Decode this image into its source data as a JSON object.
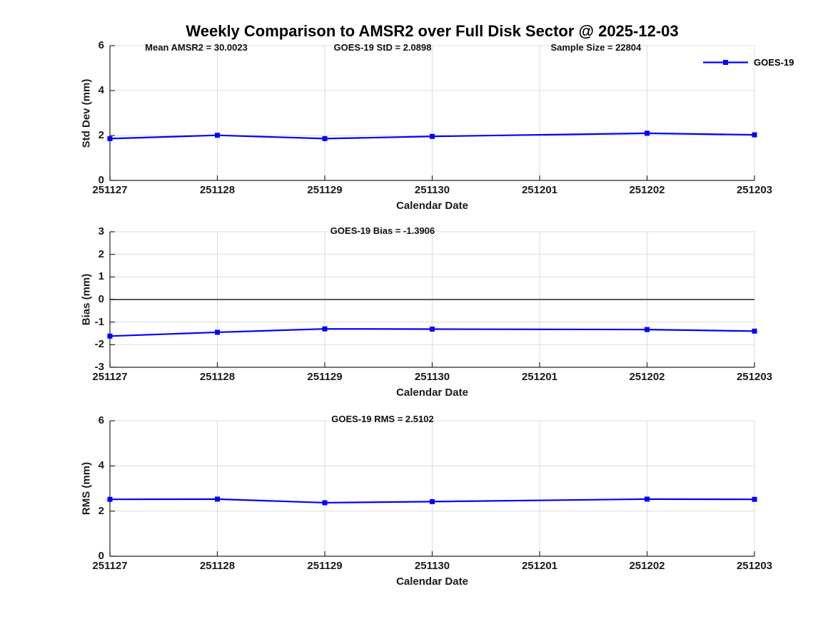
{
  "page": {
    "title": "Weekly Comparison to AMSR2 over Full Disk Sector @ 2025-12-03"
  },
  "legend": {
    "label": "GOES-19",
    "position": "top-right-outside"
  },
  "colors": {
    "line": "#0000ff",
    "grid": "#dcdcdc",
    "axis": "#262626",
    "tick_text": "#1a1a1a",
    "zero_line": "#404040",
    "background": "#ffffff"
  },
  "x_axis": {
    "label": "Calendar Date",
    "categories": [
      "251127",
      "251128",
      "251129",
      "251130",
      "251201",
      "251202",
      "251203"
    ]
  },
  "chart_data": [
    {
      "name": "std-dev",
      "type": "line",
      "title_annotations": [
        "Mean AMSR2 = 30.0023",
        "GOES-19 StD = 2.0898",
        "Sample Size = 22804"
      ],
      "ylabel": "Std Dev (mm)",
      "xlabel": "Calendar Date",
      "ylim": [
        0,
        6
      ],
      "yticks": [
        0,
        2,
        4,
        6
      ],
      "grid": true,
      "zero_line": false,
      "series": [
        {
          "name": "GOES-19",
          "x": [
            "251127",
            "251128",
            "251129",
            "251130",
            "251202",
            "251203"
          ],
          "values": [
            1.86,
            2.01,
            1.86,
            1.96,
            2.1,
            2.03
          ]
        }
      ]
    },
    {
      "name": "bias",
      "type": "line",
      "title_annotations": [
        "GOES-19 Bias  = -1.3906"
      ],
      "ylabel": "Bias (mm)",
      "xlabel": "Calendar Date",
      "ylim": [
        -3,
        3
      ],
      "yticks": [
        -3,
        -2,
        -1,
        0,
        1,
        2,
        3
      ],
      "grid": true,
      "zero_line": true,
      "series": [
        {
          "name": "GOES-19",
          "x": [
            "251127",
            "251128",
            "251129",
            "251130",
            "251202",
            "251203"
          ],
          "values": [
            -1.62,
            -1.45,
            -1.3,
            -1.31,
            -1.33,
            -1.4
          ]
        }
      ]
    },
    {
      "name": "rms",
      "type": "line",
      "title_annotations": [
        "GOES-19 RMS = 2.5102"
      ],
      "ylabel": "RMS (mm)",
      "xlabel": "Calendar Date",
      "ylim": [
        0,
        6
      ],
      "yticks": [
        0,
        2,
        4,
        6
      ],
      "grid": true,
      "zero_line": false,
      "series": [
        {
          "name": "GOES-19",
          "x": [
            "251127",
            "251128",
            "251129",
            "251130",
            "251202",
            "251203"
          ],
          "values": [
            2.52,
            2.53,
            2.37,
            2.42,
            2.53,
            2.52
          ]
        }
      ]
    }
  ]
}
